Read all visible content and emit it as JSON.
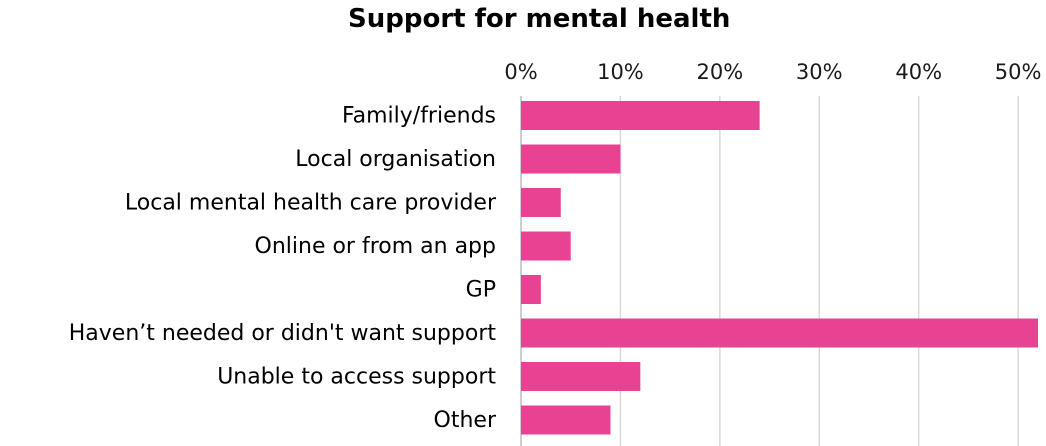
{
  "chart_data": {
    "type": "bar",
    "orientation": "horizontal",
    "title": "Support for mental health",
    "categories": [
      "Family/friends",
      "Local organisation",
      "Local mental health care provider",
      "Online or from an app",
      "GP",
      "Haven’t needed or didn't want support",
      "Unable to access support",
      "Other"
    ],
    "values": [
      24,
      10,
      4,
      5,
      2,
      52,
      12,
      9
    ],
    "x_ticks": [
      "0%",
      "10%",
      "20%",
      "30%",
      "40%",
      "50%"
    ],
    "xlim": [
      0,
      52
    ],
    "grid": true,
    "legend": "none",
    "colors": {
      "bar": "#E84393",
      "grid": "#d9d9d9"
    }
  }
}
